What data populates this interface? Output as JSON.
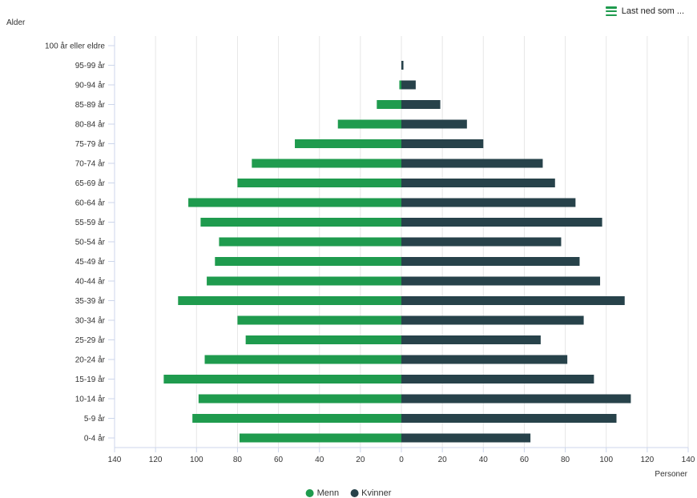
{
  "download": {
    "label": "Last ned som ...",
    "icon": "menu-icon"
  },
  "chart_data": {
    "type": "bar",
    "orientation": "horizontal",
    "layout": "population-pyramid",
    "ylabel": "Alder",
    "xlabel": "Personer",
    "xlim": [
      -140,
      140
    ],
    "x_ticks": [
      -140,
      -120,
      -100,
      -80,
      -60,
      -40,
      -20,
      0,
      20,
      40,
      60,
      80,
      100,
      120,
      140
    ],
    "x_tick_labels": [
      "140",
      "120",
      "100",
      "80",
      "60",
      "40",
      "20",
      "0",
      "20",
      "40",
      "60",
      "80",
      "100",
      "120",
      "140"
    ],
    "grid": true,
    "legend_position": "bottom",
    "categories": [
      "100 år eller eldre",
      "95-99 år",
      "90-94 år",
      "85-89 år",
      "80-84 år",
      "75-79 år",
      "70-74 år",
      "65-69 år",
      "60-64 år",
      "55-59 år",
      "50-54 år",
      "45-49 år",
      "40-44 år",
      "35-39 år",
      "30-34 år",
      "25-29 år",
      "20-24 år",
      "15-19 år",
      "10-14 år",
      "5-9 år",
      "0-4 år"
    ],
    "series": [
      {
        "name": "Menn",
        "color": "#1f9b4e",
        "side": "left",
        "values": [
          0,
          0,
          1,
          12,
          31,
          52,
          73,
          80,
          104,
          98,
          89,
          91,
          95,
          109,
          80,
          76,
          96,
          116,
          99,
          102,
          79
        ]
      },
      {
        "name": "Kvinner",
        "color": "#27424a",
        "side": "right",
        "values": [
          0,
          1,
          7,
          19,
          32,
          40,
          69,
          75,
          85,
          98,
          78,
          87,
          97,
          109,
          89,
          68,
          81,
          94,
          112,
          105,
          63
        ]
      }
    ]
  }
}
